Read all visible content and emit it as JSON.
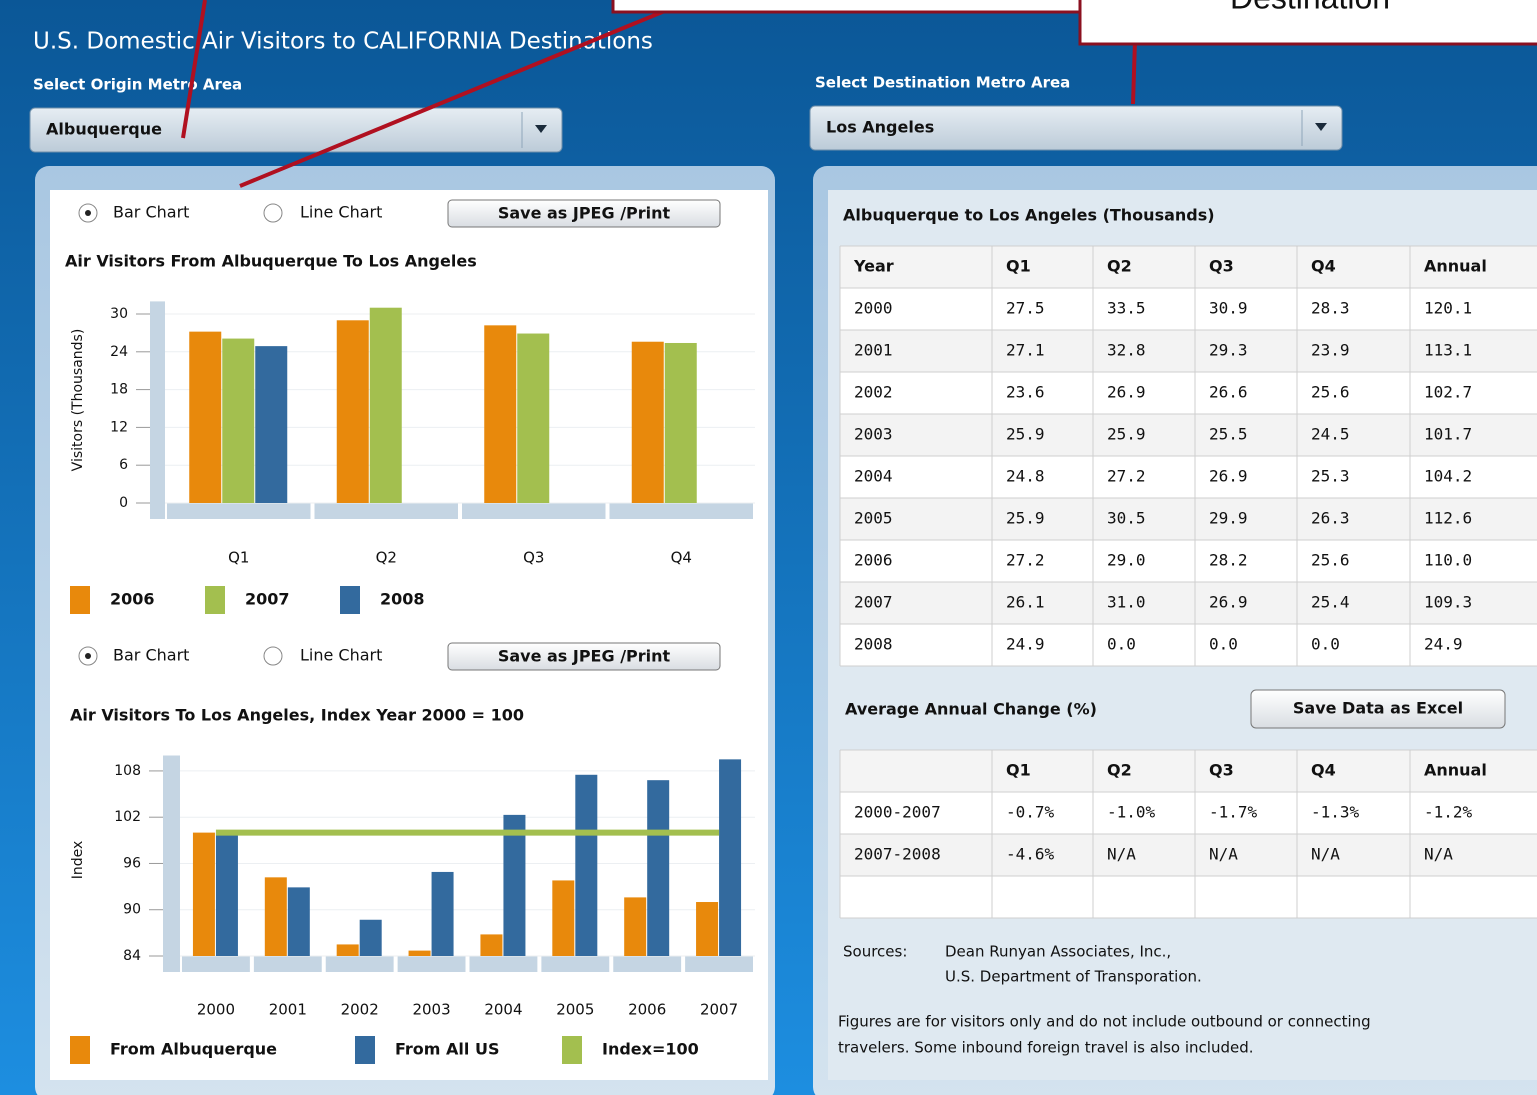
{
  "header": {
    "title": "U.S. Domestic Air Visitors to CALIFORNIA Destinations",
    "origin_label": "Select Origin Metro Area",
    "origin_value": "Albuquerque",
    "destination_label": "Select Destination Metro Area",
    "destination_value": "Los Angeles"
  },
  "annotations": {
    "destination_callout": "Destination"
  },
  "controls": {
    "bar_chart": "Bar Chart",
    "line_chart": "Line Chart",
    "save_jpeg": "Save as JPEG /Print",
    "save_excel": "Save Data as Excel"
  },
  "chart_data": [
    {
      "type": "bar",
      "title": "Air Visitors From Albuquerque To Los Angeles",
      "y_label": "Visitors (Thousands)",
      "categories": [
        "Q1",
        "Q2",
        "Q3",
        "Q4"
      ],
      "series": [
        {
          "name": "2006",
          "color": "#e8890c",
          "values": [
            27.2,
            29.0,
            28.2,
            25.6
          ]
        },
        {
          "name": "2007",
          "color": "#a3bf4f",
          "values": [
            26.1,
            31.0,
            26.9,
            25.4
          ]
        },
        {
          "name": "2008",
          "color": "#336a9e",
          "values": [
            24.9,
            0,
            0,
            0
          ]
        }
      ],
      "ylim": [
        0,
        32
      ],
      "yticks": [
        0,
        6,
        12,
        18,
        24,
        30
      ],
      "grid": true
    },
    {
      "type": "bar",
      "title": "Air Visitors To Los Angeles,  Index Year  2000 = 100",
      "y_label": "Index",
      "categories": [
        "2000",
        "2001",
        "2002",
        "2003",
        "2004",
        "2005",
        "2006",
        "2007"
      ],
      "series": [
        {
          "name": "From Albuquerque",
          "color": "#e8890c",
          "values": [
            100,
            94.2,
            85.5,
            84.7,
            86.8,
            93.8,
            91.6,
            91.0
          ]
        },
        {
          "name": "From All US",
          "color": "#336a9e",
          "values": [
            100,
            92.9,
            88.7,
            94.9,
            102.3,
            107.5,
            106.8,
            109.5
          ]
        },
        {
          "name": "Index=100",
          "color": "#a3bf4f",
          "type": "line",
          "values": [
            100,
            100,
            100,
            100,
            100,
            100,
            100,
            100
          ]
        }
      ],
      "ylim": [
        84,
        110
      ],
      "yticks": [
        84,
        90,
        96,
        102,
        108
      ],
      "grid": true
    }
  ],
  "table": {
    "title": "Albuquerque to Los Angeles (Thousands)",
    "columns": [
      "Year",
      "Q1",
      "Q2",
      "Q3",
      "Q4",
      "Annual"
    ],
    "rows": [
      [
        "2000",
        "27.5",
        "33.5",
        "30.9",
        "28.3",
        "120.1"
      ],
      [
        "2001",
        "27.1",
        "32.8",
        "29.3",
        "23.9",
        "113.1"
      ],
      [
        "2002",
        "23.6",
        "26.9",
        "26.6",
        "25.6",
        "102.7"
      ],
      [
        "2003",
        "25.9",
        "25.9",
        "25.5",
        "24.5",
        "101.7"
      ],
      [
        "2004",
        "24.8",
        "27.2",
        "26.9",
        "25.3",
        "104.2"
      ],
      [
        "2005",
        "25.9",
        "30.5",
        "29.9",
        "26.3",
        "112.6"
      ],
      [
        "2006",
        "27.2",
        "29.0",
        "28.2",
        "25.6",
        "110.0"
      ],
      [
        "2007",
        "26.1",
        "31.0",
        "26.9",
        "25.4",
        "109.3"
      ],
      [
        "2008",
        "24.9",
        "0.0",
        "0.0",
        "0.0",
        "24.9"
      ]
    ]
  },
  "change_table": {
    "title": "Average Annual Change (%)",
    "columns": [
      "Q1",
      "Q2",
      "Q3",
      "Q4",
      "Annual"
    ],
    "rows": [
      [
        "2000-2007",
        "-0.7%",
        "-1.0%",
        "-1.7%",
        "-1.3%",
        "-1.2%"
      ],
      [
        "2007-2008",
        "-4.6%",
        "N/A",
        "N/A",
        "N/A",
        "N/A"
      ]
    ]
  },
  "notes": {
    "sources_label": "Sources:",
    "sources": [
      "Dean Runyan Associates, Inc.,",
      "U.S. Department of Transporation."
    ],
    "footnote": [
      "Figures are for visitors only and do not include outbound or connecting",
      "travelers.  Some inbound foreign travel is also included."
    ]
  }
}
